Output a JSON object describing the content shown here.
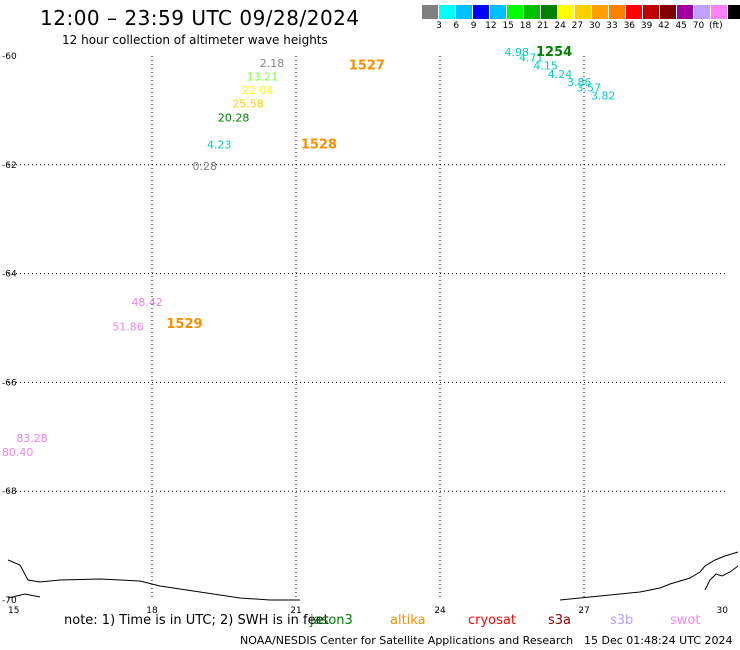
{
  "header": {
    "title": "12:00 – 23:59 UTC 09/28/2024",
    "subtitle": "12 hour collection of altimeter wave heights"
  },
  "legend": {
    "colors": [
      "#808080",
      "#00ffff",
      "#00bfff",
      "#0000ff",
      "#00bfff",
      "#00ff00",
      "#00c000",
      "#008000",
      "#ffff00",
      "#ffd000",
      "#ffa000",
      "#ff8000",
      "#ff0000",
      "#c00000",
      "#800000",
      "#a000a0",
      "#c0a0ff",
      "#ff80ff",
      "#000000"
    ],
    "labels": [
      "3",
      "6",
      "9",
      "12",
      "15",
      "18",
      "21",
      "24",
      "27",
      "30",
      "33",
      "36",
      "39",
      "42",
      "45",
      "70",
      "(ft)"
    ]
  },
  "map": {
    "lat_labels": [
      "-60",
      "-62",
      "-64",
      "-66",
      "-68",
      "-70"
    ],
    "lon_labels": [
      "15",
      "18",
      "21",
      "24",
      "27",
      "30"
    ],
    "wave_heights": [
      {
        "text": "2.18",
        "color": "#808080",
        "lon": 20.5,
        "lat": -60.2
      },
      {
        "text": "13.21",
        "color": "#80ff40",
        "lon": 20.3,
        "lat": -60.45
      },
      {
        "text": "22.04",
        "color": "#ffff00",
        "lon": 20.2,
        "lat": -60.7
      },
      {
        "text": "25.58",
        "color": "#ffd000",
        "lon": 20.0,
        "lat": -60.95
      },
      {
        "text": "20.28",
        "color": "#008000",
        "lon": 19.7,
        "lat": -61.2
      },
      {
        "text": "4.23",
        "color": "#00cccc",
        "lon": 19.4,
        "lat": -61.7
      },
      {
        "text": "0.28",
        "color": "#808080",
        "lon": 19.1,
        "lat": -62.1
      },
      {
        "text": "4.98",
        "color": "#00cccc",
        "lon": 25.6,
        "lat": -60.0
      },
      {
        "text": "4.71",
        "color": "#00cccc",
        "lon": 25.9,
        "lat": -60.1
      },
      {
        "text": "4.15",
        "color": "#00cccc",
        "lon": 26.2,
        "lat": -60.25
      },
      {
        "text": "4.24",
        "color": "#00cccc",
        "lon": 26.5,
        "lat": -60.4
      },
      {
        "text": "3.86",
        "color": "#00cccc",
        "lon": 26.9,
        "lat": -60.55
      },
      {
        "text": "3.57",
        "color": "#00cccc",
        "lon": 27.1,
        "lat": -60.65
      },
      {
        "text": "3.82",
        "color": "#00cccc",
        "lon": 27.4,
        "lat": -60.8
      },
      {
        "text": "48.42",
        "color": "#ee82ee",
        "lon": 17.9,
        "lat": -64.6
      },
      {
        "text": "51.86",
        "color": "#ee82ee",
        "lon": 17.5,
        "lat": -65.05
      },
      {
        "text": "83.28",
        "color": "#ee82ee",
        "lon": 15.5,
        "lat": -67.1
      },
      {
        "text": "80.40",
        "color": "#ee82ee",
        "lon": 15.2,
        "lat": -67.35
      }
    ],
    "time_labels": [
      {
        "text": "1527",
        "color": "#ff8c00",
        "lon": 22.1,
        "lat": -60.25
      },
      {
        "text": "1528",
        "color": "#ff8c00",
        "lon": 21.1,
        "lat": -61.7
      },
      {
        "text": "1254",
        "color": "#008000",
        "lon": 26.0,
        "lat": -60.0
      },
      {
        "text": "1529",
        "color": "#ff8c00",
        "lon": 18.3,
        "lat": -65.0
      }
    ]
  },
  "footer": {
    "note": "note:  1) Time is in UTC; 2) SWH is in feet",
    "missions": [
      {
        "name": "jason3",
        "color": "#008000"
      },
      {
        "name": "altika",
        "color": "#ff8c00"
      },
      {
        "name": "cryosat",
        "color": "#ff0000"
      },
      {
        "name": "s3a",
        "color": "#8b0000"
      },
      {
        "name": "s3b",
        "color": "#b0a0ff"
      },
      {
        "name": "swot",
        "color": "#ff80ff"
      }
    ],
    "credit": "NOAA/NESDIS Center for Satellite Applications and Research",
    "generated": "15 Dec 01:48:24 UTC 2024"
  }
}
